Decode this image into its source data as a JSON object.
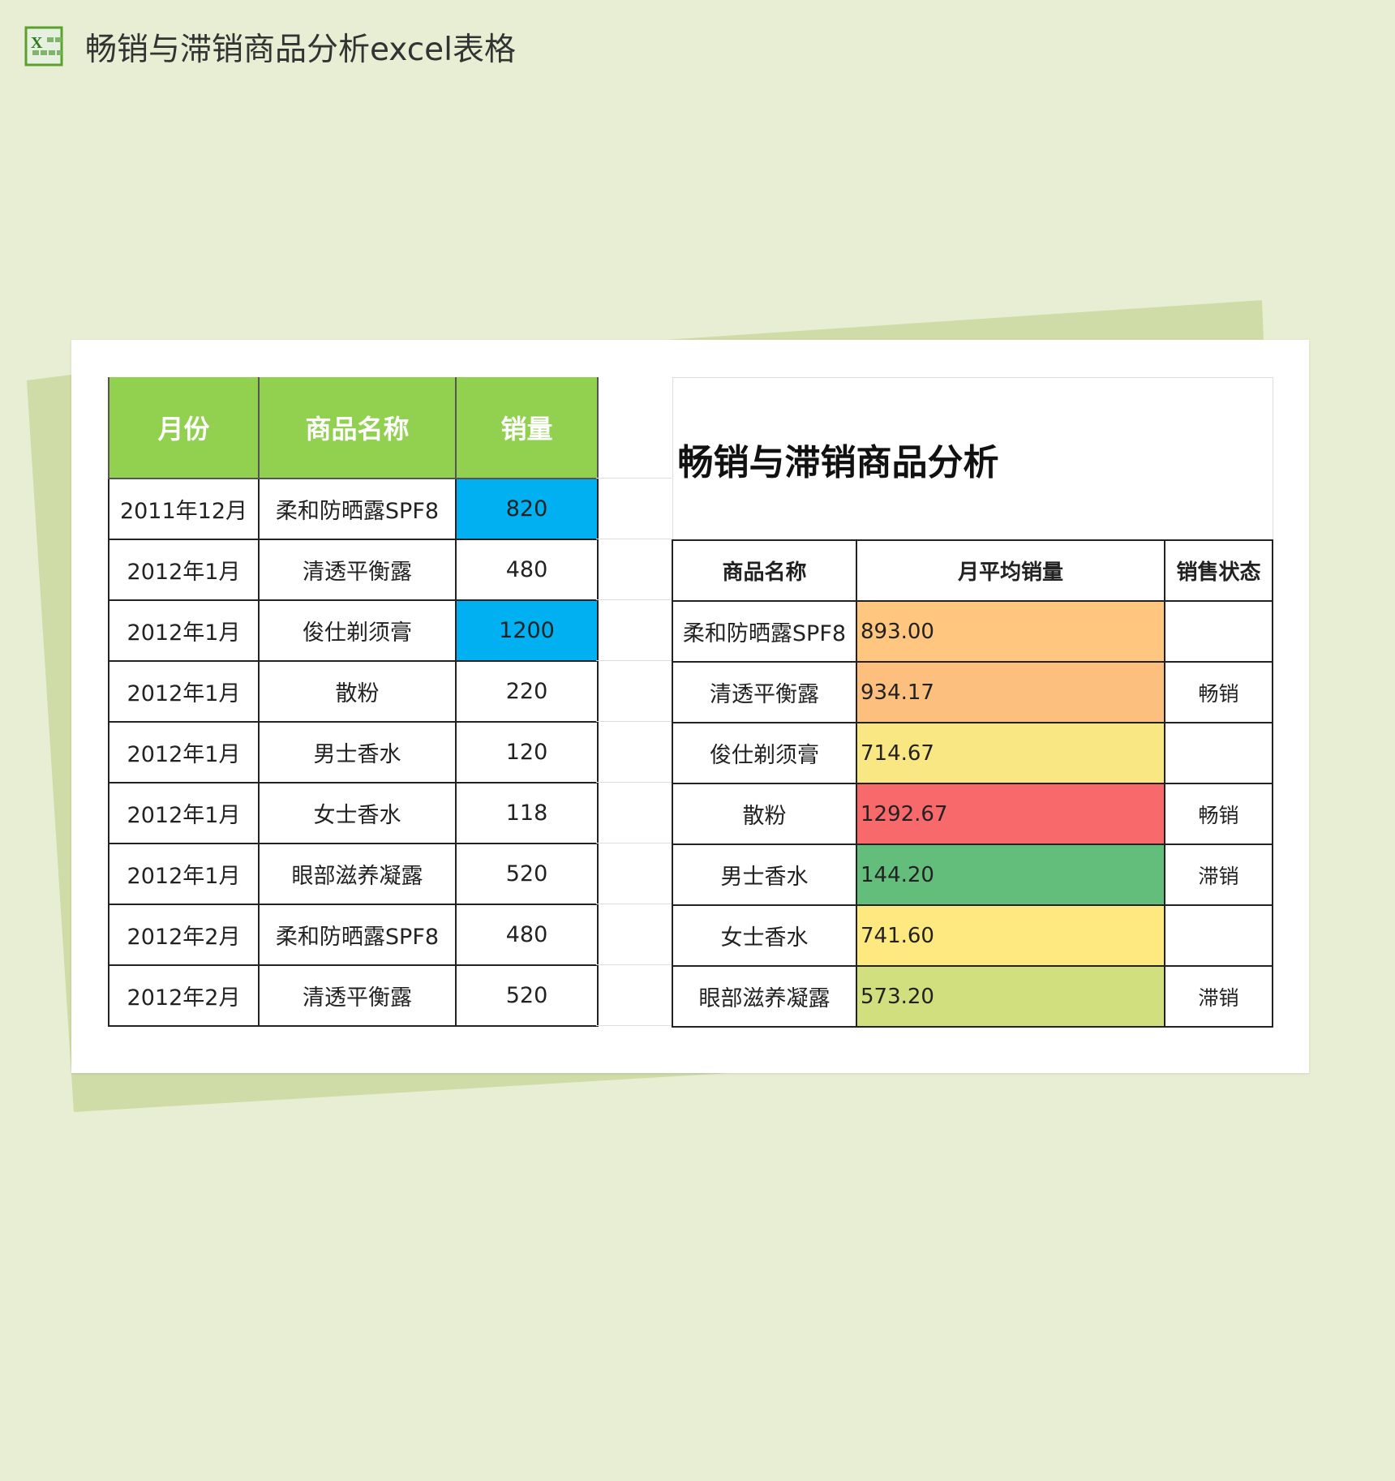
{
  "window": {
    "title": "畅销与滞销商品分析excel表格",
    "icon": "excel-icon"
  },
  "colors": {
    "header": "#92d050",
    "highlight": "#00b0f0",
    "orange": "#ffc680",
    "yellow": "#f9e784",
    "red": "#f8696b",
    "green": "#63be7b",
    "olive": "#d1df7f"
  },
  "left_table": {
    "headers": [
      "月份",
      "商品名称",
      "销量"
    ],
    "rows": [
      {
        "month": "2011年12月",
        "product": "柔和防晒露SPF8",
        "sales": "820",
        "highlight": true
      },
      {
        "month": "2012年1月",
        "product": "清透平衡露",
        "sales": "480",
        "highlight": false
      },
      {
        "month": "2012年1月",
        "product": "俊仕剃须膏",
        "sales": "1200",
        "highlight": true
      },
      {
        "month": "2012年1月",
        "product": "散粉",
        "sales": "220",
        "highlight": false
      },
      {
        "month": "2012年1月",
        "product": "男士香水",
        "sales": "120",
        "highlight": false
      },
      {
        "month": "2012年1月",
        "product": "女士香水",
        "sales": "118",
        "highlight": false
      },
      {
        "month": "2012年1月",
        "product": "眼部滋养凝露",
        "sales": "520",
        "highlight": false
      },
      {
        "month": "2012年2月",
        "product": "柔和防晒露SPF8",
        "sales": "480",
        "highlight": false
      },
      {
        "month": "2012年2月",
        "product": "清透平衡露",
        "sales": "520",
        "highlight": false
      }
    ]
  },
  "right_table": {
    "title": "畅销与滞销商品分析",
    "headers": [
      "商品名称",
      "月平均销量",
      "销售状态"
    ],
    "rows": [
      {
        "product": "柔和防晒露SPF8",
        "avg": "893.00",
        "status": "",
        "color": "#ffc680"
      },
      {
        "product": "清透平衡露",
        "avg": "934.17",
        "status": "畅销",
        "color": "#fdbf7d"
      },
      {
        "product": "俊仕剃须膏",
        "avg": "714.67",
        "status": "",
        "color": "#f9e784"
      },
      {
        "product": "散粉",
        "avg": "1292.67",
        "status": "畅销",
        "color": "#f8696b"
      },
      {
        "product": "男士香水",
        "avg": "144.20",
        "status": "滞销",
        "color": "#63be7b"
      },
      {
        "product": "女士香水",
        "avg": "741.60",
        "status": "",
        "color": "#fde97f"
      },
      {
        "product": "眼部滋养凝露",
        "avg": "573.20",
        "status": "滞销",
        "color": "#d1df7f"
      }
    ]
  }
}
